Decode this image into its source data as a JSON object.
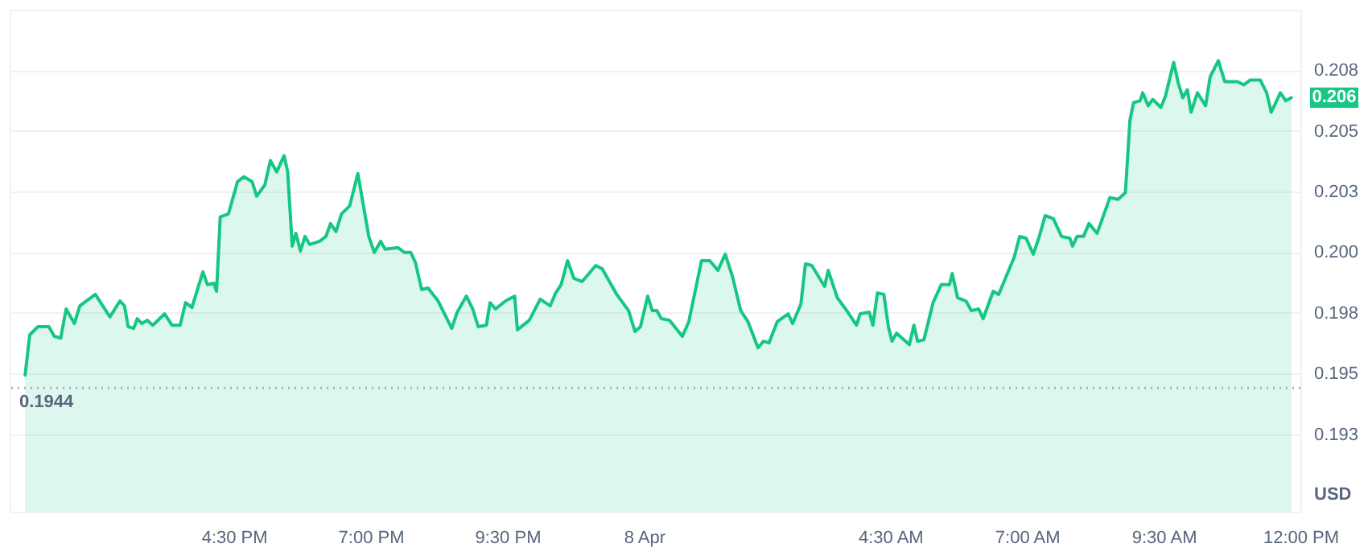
{
  "chart_data": {
    "type": "area",
    "ylabel": "USD",
    "x": [
      "--04-07T12:41",
      "--04-07T12:46",
      "--04-07T12:55",
      "--04-07T13:07",
      "--04-07T13:13",
      "--04-07T13:20",
      "--04-07T13:26",
      "--04-07T13:35",
      "--04-07T13:41",
      "--04-07T13:58",
      "--04-07T14:14",
      "--04-07T14:25",
      "--04-07T14:30",
      "--04-07T14:34",
      "--04-07T14:40",
      "--04-07T14:44",
      "--04-07T14:49",
      "--04-07T14:55",
      "--04-07T15:01",
      "--04-07T15:14",
      "--04-07T15:22",
      "--04-07T15:31",
      "--04-07T15:37",
      "--04-07T15:44",
      "--04-07T15:56",
      "--04-07T16:01",
      "--04-07T16:08",
      "--04-07T16:11",
      "--04-07T16:15",
      "--04-07T16:24",
      "--04-07T16:34",
      "--04-07T16:41",
      "--04-07T16:50",
      "--04-07T16:55",
      "--04-07T17:04",
      "--04-07T17:10",
      "--04-07T17:17",
      "--04-07T17:25",
      "--04-07T17:29",
      "--04-07T17:34",
      "--04-07T17:38",
      "--04-07T17:43",
      "--04-07T17:48",
      "--04-07T17:53",
      "--04-07T18:04",
      "--04-07T18:11",
      "--04-07T18:16",
      "--04-07T18:22",
      "--04-07T18:28",
      "--04-07T18:37",
      "--04-07T18:46",
      "--04-07T18:58",
      "--04-07T19:04",
      "--04-07T19:11",
      "--04-07T19:16",
      "--04-07T19:30",
      "--04-07T19:37",
      "--04-07T19:44",
      "--04-07T19:49",
      "--04-07T19:56",
      "--04-07T20:03",
      "--04-07T20:14",
      "--04-07T20:29",
      "--04-07T20:35",
      "--04-07T20:45",
      "--04-07T20:52",
      "--04-07T20:58",
      "--04-07T21:07",
      "--04-07T21:11",
      "--04-07T21:17",
      "--04-07T21:28",
      "--04-07T21:38",
      "--04-07T21:41",
      "--04-07T21:54",
      "--04-07T22:06",
      "--04-07T22:17",
      "--04-07T22:23",
      "--04-07T22:29",
      "--04-07T22:36",
      "--04-07T22:43",
      "--04-07T22:52",
      "--04-07T23:07",
      "--04-07T23:14",
      "--04-07T23:30",
      "--04-07T23:43",
      "--04-07T23:50",
      "--04-07T23:56",
      "--04-08T00:04",
      "--04-08T00:09",
      "--04-08T00:14",
      "--04-08T00:19",
      "--04-08T00:28",
      "--04-08T00:42",
      "--04-08T00:49",
      "--04-08T01:03",
      "--04-08T01:12",
      "--04-08T01:21",
      "--04-08T01:29",
      "--04-08T01:37",
      "--04-08T01:46",
      "--04-08T01:54",
      "--04-08T02:05",
      "--04-08T02:11",
      "--04-08T02:17",
      "--04-08T02:26",
      "--04-08T02:38",
      "--04-08T02:43",
      "--04-08T02:52",
      "--04-08T02:57",
      "--04-08T03:04",
      "--04-08T03:18",
      "--04-08T03:22",
      "--04-08T03:32",
      "--04-08T03:41",
      "--04-08T03:53",
      "--04-08T03:57",
      "--04-08T04:07",
      "--04-08T04:11",
      "--04-08T04:16",
      "--04-08T04:23",
      "--04-08T04:28",
      "--04-08T04:32",
      "--04-08T04:37",
      "--04-08T04:51",
      "--04-08T04:56",
      "--04-08T05:00",
      "--04-08T05:07",
      "--04-08T05:17",
      "--04-08T05:26",
      "--04-08T05:35",
      "--04-08T05:38",
      "--04-08T05:44",
      "--04-08T05:53",
      "--04-08T05:59",
      "--04-08T06:07",
      "--04-08T06:12",
      "--04-08T06:23",
      "--04-08T06:29",
      "--04-08T06:46",
      "--04-08T06:52",
      "--04-08T06:59",
      "--04-08T07:07",
      "--04-08T07:13",
      "--04-08T07:20",
      "--04-08T07:29",
      "--04-08T07:38",
      "--04-08T07:47",
      "--04-08T07:50",
      "--04-08T07:55",
      "--04-08T08:02",
      "--04-08T08:08",
      "--04-08T08:17",
      "--04-08T08:31",
      "--04-08T08:40",
      "--04-08T08:48",
      "--04-08T08:53",
      "--04-08T08:57",
      "--04-08T09:04",
      "--04-08T09:07",
      "--04-08T09:13",
      "--04-08T09:18",
      "--04-08T09:27",
      "--04-08T09:32",
      "--04-08T09:41",
      "--04-08T09:46",
      "--04-08T09:51",
      "--04-08T09:56",
      "--04-08T10:00",
      "--04-08T10:07",
      "--04-08T10:16",
      "--04-08T10:21",
      "--04-08T10:30",
      "--04-08T10:37",
      "--04-08T10:51",
      "--04-08T10:58",
      "--04-08T11:05",
      "--04-08T11:16",
      "--04-08T11:23",
      "--04-08T11:28",
      "--04-08T11:38",
      "--04-08T11:44",
      "--04-08T11:50"
    ],
    "series": [
      {
        "color": "#16c784",
        "values": [
          0.19493,
          0.19659,
          0.19693,
          0.19693,
          0.19653,
          0.19646,
          0.19766,
          0.19706,
          0.19779,
          0.19826,
          0.19733,
          0.19799,
          0.19779,
          0.19693,
          0.19686,
          0.19726,
          0.19706,
          0.19719,
          0.19699,
          0.19746,
          0.19699,
          0.19699,
          0.19792,
          0.19772,
          0.19919,
          0.19866,
          0.19872,
          0.19839,
          0.20145,
          0.20158,
          0.20291,
          0.20311,
          0.20291,
          0.20231,
          0.20278,
          0.20378,
          0.20331,
          0.20398,
          0.20331,
          0.20025,
          0.20078,
          0.20005,
          0.20065,
          0.20032,
          0.20045,
          0.20065,
          0.20118,
          0.20085,
          0.20158,
          0.20191,
          0.20324,
          0.20065,
          0.19999,
          0.20045,
          0.20012,
          0.20019,
          0.19999,
          0.19999,
          0.19959,
          0.19846,
          0.19852,
          0.19799,
          0.19686,
          0.19753,
          0.19819,
          0.19766,
          0.19693,
          0.19699,
          0.19792,
          0.19766,
          0.19799,
          0.19819,
          0.1968,
          0.19719,
          0.19806,
          0.19779,
          0.19832,
          0.19866,
          0.19965,
          0.19892,
          0.19879,
          0.19945,
          0.19932,
          0.19826,
          0.19759,
          0.19673,
          0.19693,
          0.19819,
          0.19759,
          0.19759,
          0.19726,
          0.19719,
          0.19653,
          0.19713,
          0.19965,
          0.19965,
          0.19925,
          0.19992,
          0.19899,
          0.19759,
          0.19713,
          0.19606,
          0.19633,
          0.19626,
          0.19713,
          0.19746,
          0.19706,
          0.19786,
          0.19952,
          0.19945,
          0.19859,
          0.19925,
          0.19812,
          0.19766,
          0.19699,
          0.19746,
          0.19753,
          0.19699,
          0.19832,
          0.19826,
          0.19693,
          0.19633,
          0.19666,
          0.19619,
          0.19699,
          0.19633,
          0.19639,
          0.19792,
          0.19866,
          0.19866,
          0.19912,
          0.19812,
          0.19799,
          0.19759,
          0.19766,
          0.19726,
          0.19839,
          0.19826,
          0.19979,
          0.20065,
          0.20058,
          0.19992,
          0.20058,
          0.20151,
          0.20138,
          0.20065,
          0.20058,
          0.20025,
          0.20065,
          0.20065,
          0.20118,
          0.20078,
          0.20225,
          0.20218,
          0.20245,
          0.20544,
          0.20617,
          0.20624,
          0.20657,
          0.20604,
          0.2063,
          0.20597,
          0.20644,
          0.20783,
          0.20697,
          0.20637,
          0.2067,
          0.20577,
          0.20657,
          0.20604,
          0.20723,
          0.2079,
          0.20703,
          0.20703,
          0.2069,
          0.2071,
          0.2071,
          0.20657,
          0.20577,
          0.20657,
          0.20624,
          0.20637
        ]
      }
    ],
    "xlim": [
      "--04-07T12:24",
      "--04-08T12:00"
    ],
    "xticks": [
      {
        "value": "--04-07T16:30",
        "label": "4:30 PM"
      },
      {
        "value": "--04-07T19:00",
        "label": "7:00 PM"
      },
      {
        "value": "--04-07T21:30",
        "label": "9:30 PM"
      },
      {
        "value": "--04-08T00:00",
        "label": "8 Apr"
      },
      {
        "value": "--04-08T04:30",
        "label": "4:30 AM"
      },
      {
        "value": "--04-08T07:00",
        "label": "7:00 AM"
      },
      {
        "value": "--04-08T09:30",
        "label": "9:30 AM"
      },
      {
        "value": "--04-08T12:00",
        "label": "12:00 PM"
      }
    ],
    "ylim": [
      0.1893,
      0.21
    ],
    "yticks": [
      {
        "value": 0.1925,
        "label": "0.193"
      },
      0.195,
      {
        "value": 0.1975,
        "label": "0.198"
      },
      {
        "value": 0.2,
        "label": "0.200"
      },
      {
        "value": 0.2025,
        "label": "0.203"
      },
      0.205,
      {
        "value": 0.2075,
        "label": "0.208"
      }
    ],
    "grid": "y",
    "ref_lines": [
      {
        "axis": "y",
        "value": 0.1944,
        "label": "0.1944",
        "line_style": "dotted",
        "color": "#a6b0c3"
      }
    ],
    "annotations": [
      "0.206"
    ]
  }
}
